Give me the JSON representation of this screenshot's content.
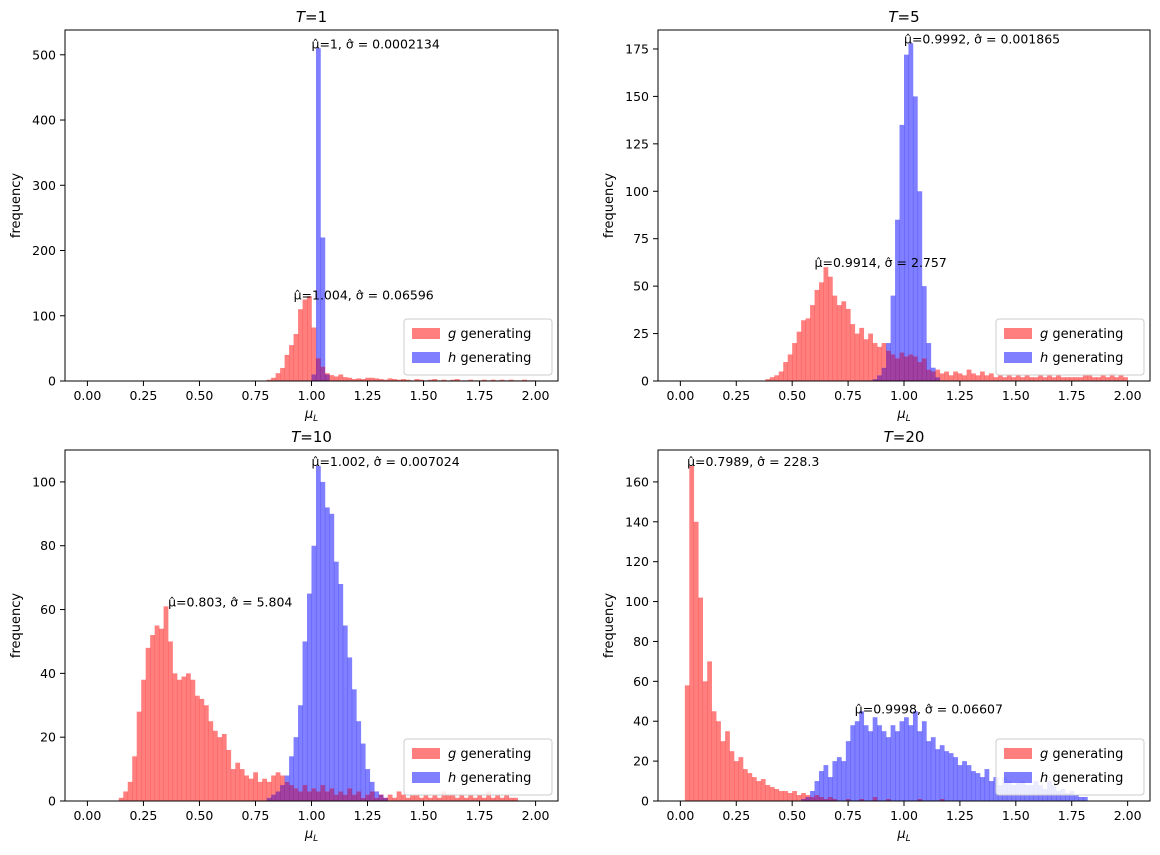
{
  "figure": {
    "ylabel": "frequency",
    "xlabel": "μʟ"
  },
  "legend_labels": [
    "g generating",
    "h generating"
  ],
  "colors": {
    "g": "#ff0000",
    "h": "#0000ff",
    "overlap": "#800080"
  },
  "chart_data": [
    {
      "type": "histogram",
      "title": "T=1",
      "title_var": "T",
      "title_value": "1",
      "xlabel": "μ_L",
      "ylabel": "frequency",
      "xlim": [
        -0.1,
        2.1
      ],
      "ylim": [
        0,
        538
      ],
      "xticks": [
        "0.00",
        "0.25",
        "0.50",
        "0.75",
        "1.00",
        "1.25",
        "1.50",
        "1.75",
        "2.00"
      ],
      "yticks": [
        "0",
        "100",
        "200",
        "300",
        "400",
        "500"
      ],
      "legend": {
        "placement": "lower-right",
        "entries": [
          "g generating",
          "h generating"
        ]
      },
      "bin_start": 0.0,
      "bin_width": 0.02,
      "series": [
        {
          "name": "g generating",
          "color": "#ff0000",
          "values": [
            0,
            0,
            0,
            0,
            0,
            0,
            0,
            0,
            0,
            0,
            0,
            0,
            0,
            0,
            0,
            0,
            0,
            0,
            0,
            0,
            0,
            0,
            0,
            0,
            0,
            0,
            0,
            0,
            0,
            0,
            0,
            0,
            0,
            0,
            0,
            0,
            0,
            0,
            0,
            0,
            2,
            5,
            12,
            20,
            40,
            55,
            72,
            110,
            125,
            130,
            82,
            35,
            22,
            12,
            9,
            7,
            10,
            6,
            5,
            3,
            4,
            3,
            5,
            5,
            4,
            3,
            2,
            4,
            3,
            2,
            3,
            2,
            1,
            3,
            2,
            1,
            2,
            3,
            1,
            2,
            1,
            2,
            3,
            1,
            1,
            2,
            1,
            1,
            2,
            1,
            2,
            1,
            2,
            1,
            2,
            1,
            1,
            2,
            1,
            1
          ]
        },
        {
          "name": "h generating",
          "color": "#0000ff",
          "values": [
            0,
            0,
            0,
            0,
            0,
            0,
            0,
            0,
            0,
            0,
            0,
            0,
            0,
            0,
            0,
            0,
            0,
            0,
            0,
            0,
            0,
            0,
            0,
            0,
            0,
            0,
            0,
            0,
            0,
            0,
            0,
            0,
            0,
            0,
            0,
            0,
            0,
            0,
            0,
            0,
            0,
            0,
            0,
            0,
            0,
            0,
            0,
            0,
            0,
            0,
            10,
            510,
            220,
            10,
            0,
            0,
            0,
            0,
            0,
            0,
            0,
            0,
            0,
            0,
            0,
            0,
            0,
            0,
            0,
            0,
            0,
            0,
            0,
            0,
            0,
            0,
            0,
            0,
            0,
            0,
            0,
            0,
            0,
            0,
            0,
            0,
            0,
            0,
            0,
            0,
            0,
            0,
            0,
            0,
            0,
            0,
            0,
            0,
            0,
            0
          ]
        }
      ],
      "annotations": [
        {
          "text": "μ̂=1, σ̂ = 0.0002134",
          "x": 1.0,
          "y": 510
        },
        {
          "text": "μ̂=1.004, σ̂ = 0.06596",
          "x": 0.92,
          "y": 125
        }
      ]
    },
    {
      "type": "histogram",
      "title": "T=5",
      "title_var": "T",
      "title_value": "5",
      "xlabel": "μ_L",
      "ylabel": "frequency",
      "xlim": [
        -0.1,
        2.1
      ],
      "ylim": [
        0,
        185
      ],
      "xticks": [
        "0.00",
        "0.25",
        "0.50",
        "0.75",
        "1.00",
        "1.25",
        "1.50",
        "1.75",
        "2.00"
      ],
      "yticks": [
        "0",
        "25",
        "50",
        "75",
        "100",
        "125",
        "150",
        "175"
      ],
      "legend": {
        "placement": "lower-right",
        "entries": [
          "g generating",
          "h generating"
        ]
      },
      "bin_start": 0.0,
      "bin_width": 0.02,
      "series": [
        {
          "name": "g generating",
          "color": "#ff0000",
          "values": [
            0,
            0,
            0,
            0,
            0,
            0,
            0,
            0,
            0,
            0,
            0,
            0,
            0,
            0,
            0,
            0,
            0,
            0,
            0,
            1,
            2,
            3,
            5,
            10,
            14,
            20,
            26,
            32,
            33,
            40,
            48,
            52,
            60,
            55,
            45,
            40,
            42,
            38,
            30,
            25,
            28,
            22,
            25,
            20,
            18,
            20,
            16,
            14,
            12,
            15,
            13,
            14,
            13,
            10,
            12,
            6,
            5,
            6,
            4,
            5,
            3,
            5,
            4,
            3,
            6,
            4,
            3,
            5,
            3,
            4,
            2,
            3,
            2,
            3,
            2,
            3,
            2,
            3,
            2,
            2,
            3,
            2,
            3,
            2,
            3,
            2,
            2,
            2,
            2,
            2,
            3,
            3,
            2,
            2,
            3,
            2,
            4,
            2,
            3,
            2
          ]
        },
        {
          "name": "h generating",
          "color": "#0000ff",
          "values": [
            0,
            0,
            0,
            0,
            0,
            0,
            0,
            0,
            0,
            0,
            0,
            0,
            0,
            0,
            0,
            0,
            0,
            0,
            0,
            0,
            0,
            0,
            0,
            0,
            0,
            0,
            0,
            0,
            0,
            0,
            0,
            0,
            0,
            0,
            0,
            0,
            0,
            0,
            0,
            0,
            0,
            0,
            0,
            1,
            3,
            7,
            20,
            45,
            85,
            135,
            172,
            178,
            150,
            100,
            50,
            20,
            7,
            2,
            0,
            0,
            0,
            0,
            0,
            0,
            0,
            0,
            0,
            0,
            0,
            0,
            0,
            0,
            0,
            0,
            0,
            0,
            0,
            0,
            0,
            0,
            0,
            0,
            0,
            0,
            0,
            0,
            0,
            0,
            0,
            0,
            0,
            0,
            0,
            0,
            0,
            0,
            0,
            0,
            0,
            0
          ]
        }
      ],
      "annotations": [
        {
          "text": "μ̂=0.9992, σ̂ = 0.001865",
          "x": 1.0,
          "y": 178
        },
        {
          "text": "μ̂=0.9914, σ̂ = 2.757",
          "x": 0.6,
          "y": 60
        }
      ]
    },
    {
      "type": "histogram",
      "title": "T=10",
      "title_var": "T",
      "title_value": "10",
      "xlabel": "μ_L",
      "ylabel": "frequency",
      "xlim": [
        -0.1,
        2.1
      ],
      "ylim": [
        0,
        110
      ],
      "xticks": [
        "0.00",
        "0.25",
        "0.50",
        "0.75",
        "1.00",
        "1.25",
        "1.50",
        "1.75",
        "2.00"
      ],
      "yticks": [
        "0",
        "20",
        "40",
        "60",
        "80",
        "100"
      ],
      "legend": {
        "placement": "lower-right",
        "entries": [
          "g generating",
          "h generating"
        ]
      },
      "bin_start": 0.0,
      "bin_width": 0.02,
      "series": [
        {
          "name": "g generating",
          "color": "#ff0000",
          "values": [
            0,
            0,
            0,
            0,
            0,
            0,
            0,
            1,
            3,
            6,
            14,
            28,
            38,
            48,
            52,
            55,
            54,
            61,
            50,
            40,
            38,
            39,
            40,
            38,
            33,
            32,
            30,
            25,
            22,
            20,
            21,
            16,
            10,
            12,
            10,
            8,
            7,
            9,
            6,
            7,
            6,
            8,
            9,
            8,
            6,
            5,
            4,
            3,
            5,
            3,
            4,
            3,
            5,
            3,
            4,
            2,
            3,
            2,
            4,
            2,
            3,
            1,
            2,
            3,
            1,
            2,
            1,
            2,
            1,
            3,
            2,
            1,
            2,
            2,
            1,
            2,
            1,
            2,
            1,
            3,
            2,
            2,
            1,
            2,
            1,
            2,
            1,
            2,
            1,
            3,
            1,
            2,
            1,
            2,
            1,
            1,
            0,
            0,
            0,
            0
          ]
        },
        {
          "name": "h generating",
          "color": "#0000ff",
          "values": [
            0,
            0,
            0,
            0,
            0,
            0,
            0,
            0,
            0,
            0,
            0,
            0,
            0,
            0,
            0,
            0,
            0,
            0,
            0,
            0,
            0,
            0,
            0,
            0,
            0,
            0,
            0,
            0,
            0,
            0,
            0,
            0,
            0,
            0,
            0,
            0,
            0,
            0,
            0,
            0,
            1,
            2,
            3,
            5,
            8,
            14,
            20,
            30,
            50,
            65,
            80,
            105,
            100,
            92,
            90,
            75,
            68,
            55,
            45,
            35,
            25,
            18,
            10,
            6,
            3,
            2,
            1,
            0,
            0,
            0,
            0,
            0,
            0,
            0,
            0,
            0,
            0,
            0,
            0,
            0,
            0,
            0,
            0,
            0,
            0,
            0,
            0,
            0,
            0,
            0,
            0,
            0,
            0,
            0,
            0,
            0,
            0,
            0,
            0,
            0
          ]
        }
      ],
      "annotations": [
        {
          "text": "μ̂=1.002, σ̂ = 0.007024",
          "x": 1.0,
          "y": 105
        },
        {
          "text": "μ̂=0.803, σ̂ = 5.804",
          "x": 0.36,
          "y": 61
        }
      ]
    },
    {
      "type": "histogram",
      "title": "T=20",
      "title_var": "T",
      "title_value": "20",
      "xlabel": "μ_L",
      "ylabel": "frequency",
      "xlim": [
        -0.1,
        2.1
      ],
      "ylim": [
        0,
        176
      ],
      "xticks": [
        "0.00",
        "0.25",
        "0.50",
        "0.75",
        "1.00",
        "1.25",
        "1.50",
        "1.75",
        "2.00"
      ],
      "yticks": [
        "0",
        "20",
        "40",
        "60",
        "80",
        "100",
        "120",
        "140",
        "160"
      ],
      "legend": {
        "placement": "lower-right",
        "entries": [
          "g generating",
          "h generating"
        ]
      },
      "bin_start": 0.0,
      "bin_width": 0.02,
      "series": [
        {
          "name": "g generating",
          "color": "#ff0000",
          "values": [
            0,
            58,
            168,
            140,
            102,
            60,
            70,
            45,
            40,
            30,
            35,
            25,
            20,
            22,
            16,
            14,
            12,
            10,
            11,
            8,
            7,
            6,
            5,
            5,
            4,
            5,
            3,
            4,
            3,
            2,
            3,
            2,
            1,
            2,
            1,
            0,
            0,
            1,
            0,
            0,
            1,
            0,
            0,
            2,
            0,
            0,
            1,
            0,
            0,
            0,
            0,
            0,
            0,
            1,
            0,
            0,
            0,
            0,
            1,
            0,
            0,
            0,
            0,
            0,
            0,
            0,
            0,
            0,
            0,
            0,
            0,
            0,
            0,
            0,
            0,
            0,
            0,
            0,
            0,
            0,
            0,
            0,
            0,
            0,
            0,
            0,
            0,
            0,
            0,
            0,
            0,
            0,
            0,
            0,
            0,
            0,
            0,
            0,
            0,
            0
          ]
        },
        {
          "name": "h generating",
          "color": "#0000ff",
          "values": [
            0,
            0,
            0,
            0,
            0,
            0,
            0,
            0,
            0,
            0,
            0,
            0,
            0,
            0,
            0,
            0,
            0,
            0,
            0,
            0,
            0,
            0,
            0,
            0,
            0,
            0,
            0,
            1,
            2,
            5,
            10,
            15,
            18,
            12,
            20,
            22,
            20,
            30,
            38,
            40,
            45,
            38,
            35,
            42,
            38,
            35,
            32,
            38,
            35,
            40,
            42,
            38,
            45,
            35,
            40,
            30,
            32,
            26,
            28,
            25,
            24,
            22,
            18,
            20,
            18,
            15,
            14,
            12,
            16,
            10,
            12,
            8,
            12,
            10,
            8,
            9,
            10,
            8,
            8,
            10,
            8,
            6,
            10,
            8,
            5,
            6,
            4,
            5,
            3,
            2,
            2,
            0,
            0,
            0,
            0,
            0,
            0,
            0,
            0,
            0
          ]
        }
      ],
      "annotations": [
        {
          "text": "μ̂=0.7989, σ̂ = 228.3",
          "x": 0.03,
          "y": 168
        },
        {
          "text": "μ̂=0.9998, σ̂ = 0.06607",
          "x": 0.78,
          "y": 44
        }
      ]
    }
  ]
}
